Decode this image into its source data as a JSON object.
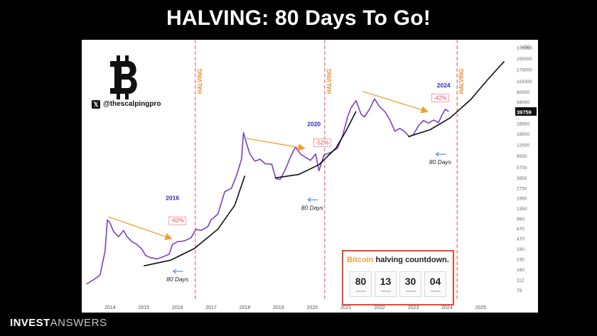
{
  "headline": "HALVING: 80 Days To Go!",
  "brand": {
    "bold": "INVEST",
    "thin": "ANSWERS"
  },
  "handle": "@thescalpingpro",
  "countdown": {
    "title_btc": "Bitcoin",
    "title_rest": " halving countdown.",
    "values": [
      "80",
      "13",
      "30",
      "04"
    ]
  },
  "colors": {
    "price": "#7b3fc6",
    "halving_line": "#e24a5a",
    "trend_arrow": "#f0a030",
    "curve": "#111111",
    "year_label": "#2b2bd0",
    "halving_label": "#f08a24",
    "pct_label": "#e24a5a",
    "days_arrow": "#3a78d8"
  },
  "chart_data": {
    "type": "line",
    "title": "",
    "xlabel": "",
    "ylabel": "USD",
    "y_scale": "log",
    "xlim": [
      2013.2,
      2025.9
    ],
    "ylim": [
      55,
      400000
    ],
    "x_ticks": [
      2014,
      2015,
      2016,
      2017,
      2018,
      2019,
      2020,
      2021,
      2022,
      2023,
      2024,
      2025
    ],
    "x_tick_labels": [
      "2014",
      "2015",
      "2016",
      "2017",
      "2018",
      "2019",
      "2020",
      "2021",
      "2022",
      "2023",
      "2024",
      "2025"
    ],
    "y_ticks": [
      78,
      112,
      160,
      230,
      330,
      470,
      670,
      950,
      1350,
      1950,
      2750,
      3950,
      5700,
      8500,
      12500,
      18500,
      26500,
      39759,
      56000,
      80000,
      115000,
      175000,
      255000,
      370000
    ],
    "y_tick_labels": [
      "78",
      "112",
      "160",
      "230",
      "330",
      "470",
      "670",
      "950",
      "1350",
      "1950",
      "2750",
      "3950",
      "5700",
      "8500",
      "12500",
      "18500",
      "26500",
      "39759",
      "56000",
      "80000",
      "115000",
      "175000",
      "255000",
      "370000"
    ],
    "y_unit_label": "USD",
    "current_price_label": "39759",
    "series": [
      {
        "x": [
          2013.3,
          2013.5,
          2013.7,
          2013.85,
          2013.92,
          2014.0,
          2014.1,
          2014.25,
          2014.4,
          2014.5,
          2014.65,
          2014.8,
          2014.95,
          2015.05,
          2015.2,
          2015.4,
          2015.6,
          2015.75,
          2015.85,
          2016.0,
          2016.2,
          2016.4,
          2016.55,
          2016.7,
          2016.9,
          2017.0,
          2017.2,
          2017.4,
          2017.6,
          2017.75,
          2017.9,
          2017.96,
          2018.05,
          2018.15,
          2018.3,
          2018.45,
          2018.6,
          2018.8,
          2018.92,
          2019.05,
          2019.2,
          2019.35,
          2019.5,
          2019.65,
          2019.8,
          2019.95,
          2020.1,
          2020.2,
          2020.35,
          2020.55,
          2020.75,
          2020.9,
          2021.05,
          2021.15,
          2021.3,
          2021.45,
          2021.55,
          2021.7,
          2021.85,
          2022.0,
          2022.15,
          2022.3,
          2022.45,
          2022.6,
          2022.75,
          2022.88,
          2023.0,
          2023.15,
          2023.3,
          2023.45,
          2023.6,
          2023.75,
          2023.85,
          2023.95,
          2024.05
        ],
        "values": [
          95,
          110,
          130,
          300,
          900,
          800,
          600,
          500,
          620,
          500,
          420,
          380,
          320,
          260,
          240,
          230,
          250,
          270,
          380,
          420,
          430,
          480,
          650,
          620,
          710,
          900,
          1100,
          2400,
          2700,
          4200,
          7500,
          19000,
          13000,
          9000,
          7000,
          7500,
          6400,
          6300,
          3800,
          3700,
          5200,
          8000,
          11500,
          9000,
          8000,
          7200,
          9000,
          5000,
          8700,
          9500,
          11000,
          17000,
          33000,
          45000,
          58000,
          36000,
          33000,
          43000,
          62000,
          47000,
          40000,
          30000,
          20000,
          22000,
          19500,
          16500,
          17500,
          24000,
          29000,
          26500,
          29500,
          27000,
          35000,
          43000,
          39759
        ]
      }
    ],
    "halvings": [
      2016.53,
      2020.37,
      2024.3
    ],
    "halving_text": "HALVING",
    "cycle_labels": [
      {
        "text": "2016",
        "x": 2015.85,
        "y": 1800
      },
      {
        "text": "2020",
        "x": 2020.05,
        "y": 24000
      },
      {
        "text": "2024",
        "x": 2023.9,
        "y": 92000
      }
    ],
    "drawdowns": [
      {
        "text": "-62%",
        "x": 2016.0,
        "y": 820
      },
      {
        "text": "-52%",
        "x": 2020.3,
        "y": 12500
      },
      {
        "text": "-42%",
        "x": 2023.8,
        "y": 60000
      }
    ],
    "days_labels": [
      {
        "text": "80 Days",
        "x": 2016.0,
        "y": 105
      },
      {
        "text": "80 Days",
        "x": 2020.0,
        "y": 1280
      },
      {
        "text": "80 Days",
        "x": 2023.8,
        "y": 6300
      }
    ],
    "trend_arrows": [
      {
        "from": [
          2013.95,
          1000
        ],
        "to": [
          2015.8,
          470
        ]
      },
      {
        "from": [
          2018.05,
          15500
        ],
        "to": [
          2019.75,
          11000
        ]
      },
      {
        "from": [
          2021.5,
          80000
        ],
        "to": [
          2023.4,
          40000
        ]
      }
    ],
    "support_curves": [
      {
        "x": [
          2015.0,
          2015.8,
          2016.5,
          2017.2,
          2017.7,
          2018.0
        ],
        "values": [
          180,
          220,
          330,
          650,
          1500,
          4200
        ]
      },
      {
        "x": [
          2018.9,
          2019.6,
          2020.2,
          2020.7,
          2021.0,
          2021.3
        ],
        "values": [
          3900,
          4400,
          6200,
          11000,
          20000,
          40000
        ]
      },
      {
        "x": [
          2022.85,
          2023.5,
          2024.1,
          2024.7,
          2025.2,
          2025.7
        ],
        "values": [
          16500,
          21000,
          32000,
          60000,
          120000,
          230000
        ]
      }
    ]
  }
}
